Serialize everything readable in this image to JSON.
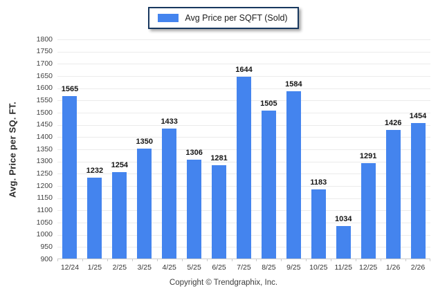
{
  "legend": {
    "label": "Avg Price per SQFT (Sold)",
    "swatch_color": "#4484ee"
  },
  "footer": {
    "copyright": "Copyright © Trendgraphix, Inc."
  },
  "chart_data": {
    "type": "bar",
    "title": "Avg Price per SQFT (Sold)",
    "xlabel": "",
    "ylabel": "Avg. Price per SQ. FT.",
    "categories": [
      "12/24",
      "1/25",
      "2/25",
      "3/25",
      "4/25",
      "5/25",
      "6/25",
      "7/25",
      "8/25",
      "9/25",
      "10/25",
      "11/25",
      "12/25",
      "1/26",
      "2/26"
    ],
    "values": [
      1565,
      1232,
      1254,
      1350,
      1433,
      1306,
      1281,
      1644,
      1505,
      1584,
      1183,
      1034,
      1291,
      1426,
      1454
    ],
    "ylim": [
      900,
      1800
    ],
    "ytick_step": 50,
    "grid": true,
    "legend_position": "top",
    "bar_color": "#4484ee",
    "gridline_color": "#ebebeb",
    "axis_line_color": "#c9c9c9",
    "tick_label_color": "#404040",
    "value_label_color": "#141414"
  }
}
